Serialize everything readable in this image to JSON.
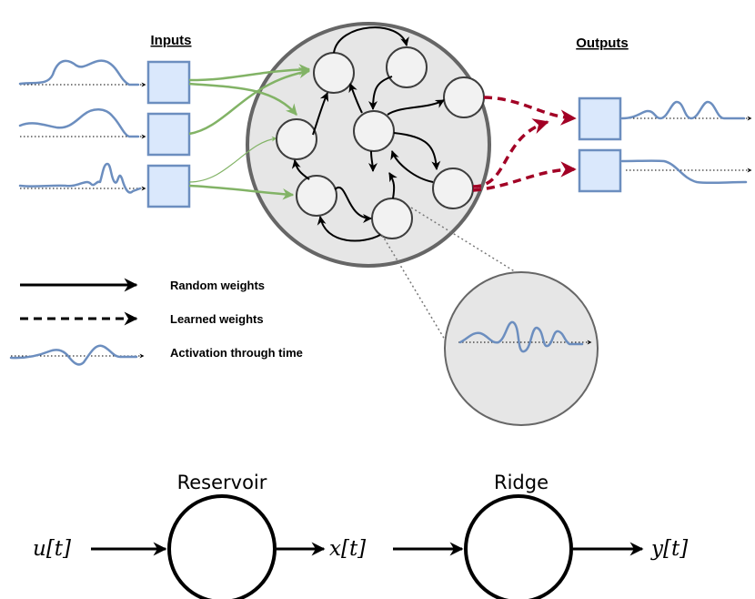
{
  "headers": {
    "inputs": "Inputs",
    "outputs": "Outputs"
  },
  "legend": {
    "random": "Random weights",
    "learned": "Learned weights",
    "activation": "Activation through time"
  },
  "pipeline": {
    "input_var": "u[t]",
    "block1": "Reservoir",
    "mid_var": "x[t]",
    "block2": "Ridge",
    "output_var": "y[t]"
  },
  "colors": {
    "signal": "#6c8ebf",
    "box_fill": "#dae8fc",
    "input_weights": "#82b366",
    "learned_weights": "#a20025",
    "reservoir_fill": "#e6e6e6",
    "node_fill": "#f2f2f2"
  }
}
